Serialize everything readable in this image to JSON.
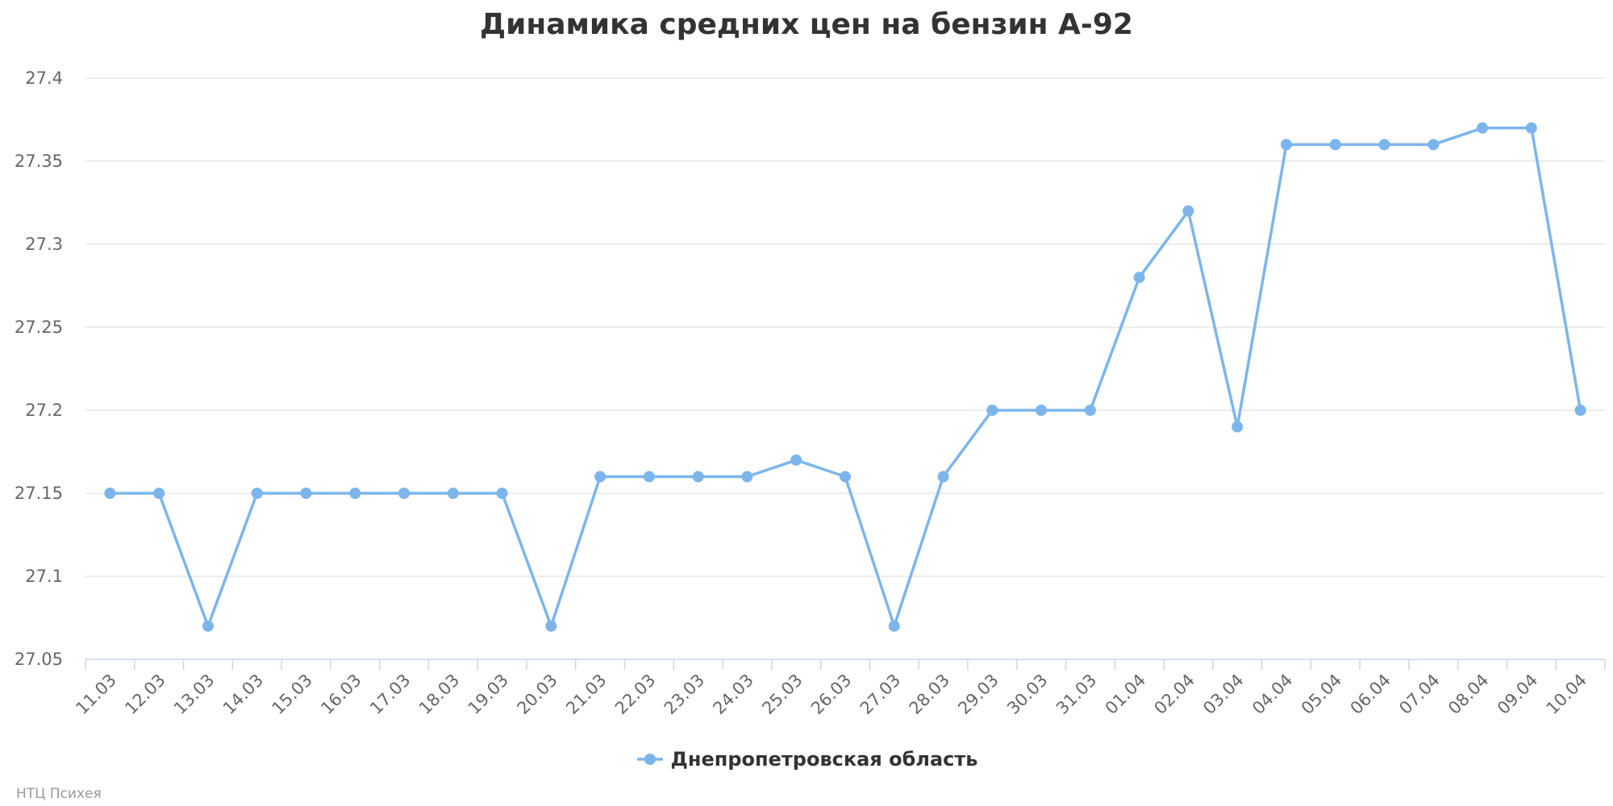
{
  "chart_data": {
    "type": "line",
    "title": "Динамика средних цен на бензин А-92",
    "xlabel": "",
    "ylabel": "",
    "categories": [
      "11.03",
      "12.03",
      "13.03",
      "14.03",
      "15.03",
      "16.03",
      "17.03",
      "18.03",
      "19.03",
      "20.03",
      "21.03",
      "22.03",
      "23.03",
      "24.03",
      "25.03",
      "26.03",
      "27.03",
      "28.03",
      "29.03",
      "30.03",
      "31.03",
      "01.04",
      "02.04",
      "03.04",
      "04.04",
      "05.04",
      "06.04",
      "07.04",
      "08.04",
      "09.04",
      "10.04"
    ],
    "ylim": [
      27.05,
      27.4
    ],
    "yticks": [
      "27.05",
      "27.1",
      "27.15",
      "27.2",
      "27.25",
      "27.3",
      "27.35",
      "27.4"
    ],
    "grid": true,
    "legend_position": "bottom-center",
    "series": [
      {
        "name": "Днепропетровская область",
        "color": "#7cb5ec",
        "values": [
          27.15,
          27.15,
          27.07,
          27.15,
          27.15,
          27.15,
          27.15,
          27.15,
          27.15,
          27.07,
          27.16,
          27.16,
          27.16,
          27.16,
          27.17,
          27.16,
          27.07,
          27.16,
          27.2,
          27.2,
          27.2,
          27.28,
          27.32,
          27.19,
          27.36,
          27.36,
          27.36,
          27.36,
          27.37,
          27.37,
          27.2
        ]
      }
    ]
  },
  "credits": "НТЦ Психея"
}
